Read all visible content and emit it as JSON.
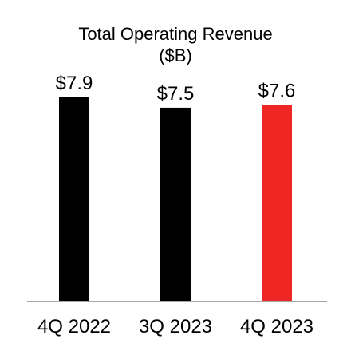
{
  "chart_data": {
    "type": "bar",
    "title": "Total Operating Revenue",
    "subtitle": "($B)",
    "categories": [
      "4Q 2022",
      "3Q 2023",
      "4Q 2023"
    ],
    "values": [
      7.9,
      7.5,
      7.6
    ],
    "value_labels": [
      "$7.9",
      "$7.5",
      "$7.6"
    ],
    "bar_colors": [
      "#000000",
      "#000000",
      "#ee2724"
    ],
    "axis_color": "#a6a6a6",
    "xlabel": "",
    "ylabel": "",
    "grid": false
  }
}
